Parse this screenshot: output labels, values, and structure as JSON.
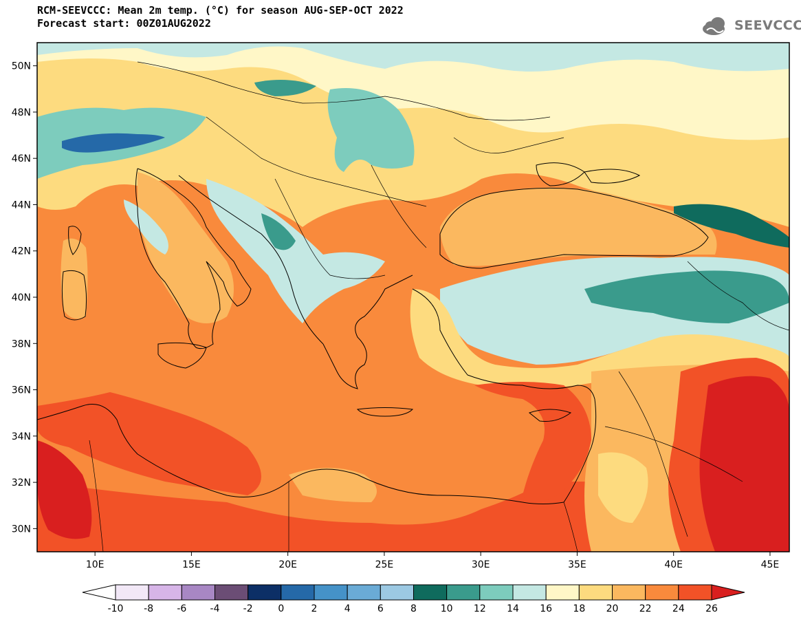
{
  "title_line1": "RCM-SEEVCCC: Mean 2m temp. (°C) for season AUG-SEP-OCT 2022",
  "title_line2": "Forecast start: 00Z01AUG2022",
  "logo": {
    "text": "SEEVCCC",
    "icon": "cloud-icon",
    "color": "#7a7a7a"
  },
  "map": {
    "lon_range": [
      7,
      46
    ],
    "lat_range": [
      29,
      51
    ],
    "lat_labels": [
      "30N",
      "32N",
      "34N",
      "36N",
      "38N",
      "40N",
      "42N",
      "44N",
      "46N",
      "48N",
      "50N"
    ],
    "lat_values": [
      30,
      32,
      34,
      36,
      38,
      40,
      42,
      44,
      46,
      48,
      50
    ],
    "lon_labels": [
      "10E",
      "15E",
      "20E",
      "25E",
      "30E",
      "35E",
      "40E",
      "45E"
    ],
    "lon_values": [
      10,
      15,
      20,
      25,
      30,
      35,
      40,
      45
    ]
  },
  "colorbar": {
    "labels": [
      "-10",
      "-8",
      "-6",
      "-4",
      "-2",
      "0",
      "2",
      "4",
      "6",
      "8",
      "10",
      "12",
      "14",
      "16",
      "18",
      "20",
      "22",
      "24",
      "26"
    ],
    "under_color": "#ffffff",
    "over_color": "#d91f1f",
    "colors": [
      "#f2e8f7",
      "#d7b5e8",
      "#a887c4",
      "#6b4d75",
      "#0c2f66",
      "#2569a8",
      "#4592c8",
      "#6aabd6",
      "#9cc9e3",
      "#0f6b5d",
      "#3a9b8c",
      "#7dccbd",
      "#c4e8e3",
      "#fff7c7",
      "#fddb7f",
      "#fbb85f",
      "#f98a3c",
      "#f25227"
    ]
  }
}
